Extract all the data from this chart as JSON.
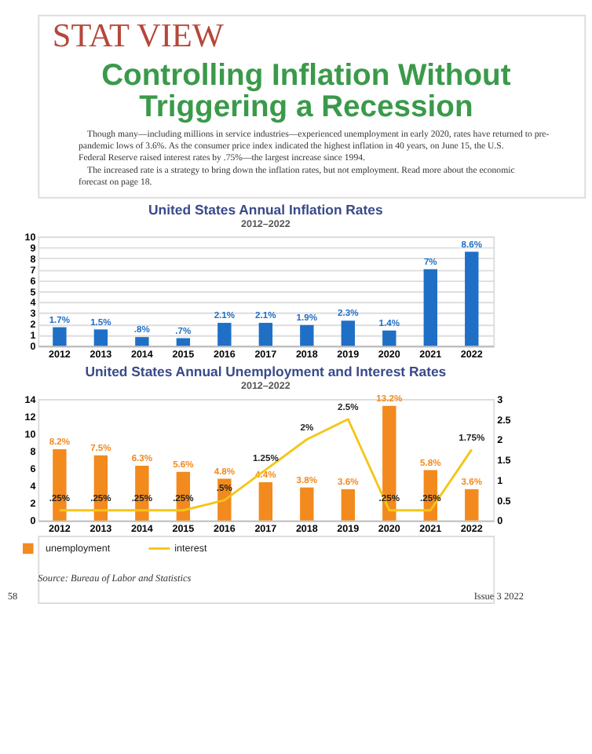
{
  "chart_data": [
    {
      "type": "other",
      "title": "STAT VIEW",
      "subtitle": "Controlling Inflation Without Triggering a Recession",
      "annotations": [
        "Though many—including millions in service industries—experienced unemployment in early 2020, rates have returned to pre-pandemic lows of 3.6%. As the consumer price index indicated the highest inflation in 40 years, on June 15, the U.S. Federal Reserve raised interest rates by .75%—the largest increase since 1994.",
        "The increased rate is a strategy to bring down the inflation rates, but not employment. Read more about the economic forecast on page 18."
      ]
    },
    {
      "type": "bar",
      "title": "United States Annual Inflation Rates",
      "subtitle": "2012–2022",
      "categories": [
        "2012",
        "2013",
        "2014",
        "2015",
        "2016",
        "2017",
        "2018",
        "2019",
        "2020",
        "2021",
        "2022"
      ],
      "series": [
        {
          "color": "#1f6fc6",
          "values": [
            1.7,
            1.5,
            0.8,
            0.7,
            2.1,
            2.1,
            1.9,
            2.3,
            1.4,
            7,
            8.6
          ],
          "value_labels": [
            "1.7%",
            "1.5%",
            ".8%",
            ".7%",
            "2.1%",
            "2.1%",
            "1.9%",
            "2.3%",
            "1.4%",
            "7%",
            "8.6%"
          ]
        }
      ],
      "ylim": [
        0,
        10
      ],
      "yticks": [
        0,
        1,
        2,
        3,
        4,
        5,
        6,
        7,
        8,
        9,
        10
      ],
      "grid": "y",
      "legend": false
    },
    {
      "type": "bar",
      "title": "United States Annual Unemployment and Interest Rates",
      "subtitle": "2012–2022",
      "categories": [
        "2012",
        "2013",
        "2014",
        "2015",
        "2016",
        "2017",
        "2018",
        "2019",
        "2020",
        "2021",
        "2022"
      ],
      "series": [
        {
          "name": "unemployment",
          "color": "#f28a1e",
          "values": [
            8.2,
            7.5,
            6.3,
            5.6,
            4.8,
            4.4,
            3.8,
            3.6,
            13.2,
            5.8,
            3.6
          ],
          "value_labels": [
            "8.2%",
            "7.5%",
            "6.3%",
            "5.6%",
            "4.8%",
            "4.4%",
            "3.8%",
            "3.6%",
            "13.2%",
            "5.8%",
            "3.6%"
          ]
        },
        {
          "name": "interest",
          "type": "line",
          "axis": "y2",
          "color": "#f5c518",
          "values": [
            0.25,
            0.25,
            0.25,
            0.25,
            0.5,
            1.25,
            2,
            2.5,
            0.25,
            0.25,
            1.75
          ],
          "value_labels": [
            ".25%",
            ".25%",
            ".25%",
            ".25%",
            ".5%",
            "1.25%",
            "2%",
            "2.5%",
            ".25%",
            ".25%",
            "1.75%"
          ]
        }
      ],
      "ylim": [
        0,
        14
      ],
      "yticks": [
        0,
        2,
        4,
        6,
        8,
        10,
        12,
        14
      ],
      "y2lim": [
        0,
        3
      ],
      "y2ticks": [
        0,
        0.5,
        1,
        1.5,
        2,
        2.5,
        3
      ],
      "grid": false,
      "legend": "bottom left",
      "annotations": [
        "Source: Bureau of Labor and Statistics",
        "58",
        "Issue 3 2022"
      ]
    }
  ]
}
